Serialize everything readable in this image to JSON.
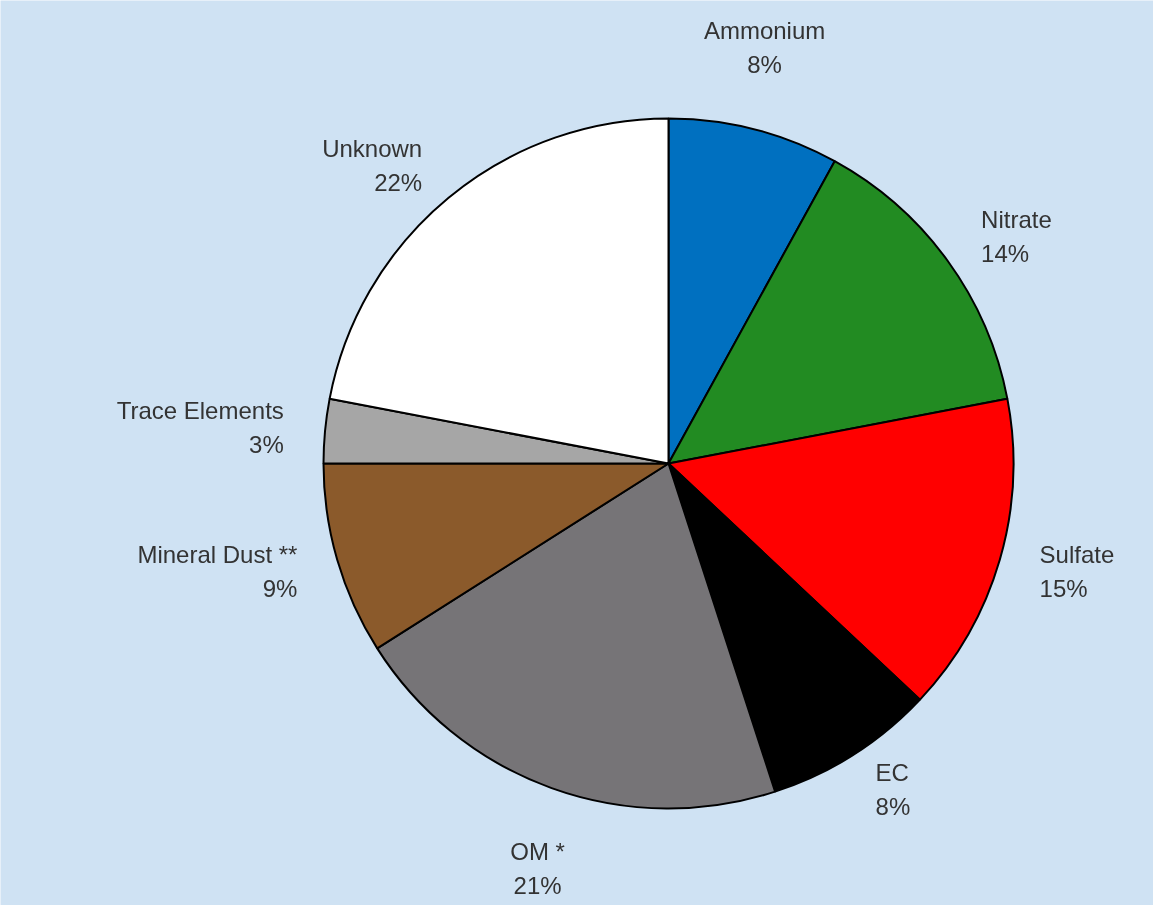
{
  "chart_data": {
    "type": "pie",
    "categories": [
      "Ammonium",
      "Nitrate",
      "Sulfate",
      "EC",
      "OM *",
      "Mineral Dust **",
      "Trace Elements",
      "Unknown"
    ],
    "values": [
      8,
      14,
      15,
      8,
      21,
      9,
      3,
      22
    ],
    "value_labels": [
      "8%",
      "14%",
      "15%",
      "8%",
      "21%",
      "9%",
      "3%",
      "22%"
    ],
    "colors": [
      "#0070c0",
      "#228b22",
      "#ff0000",
      "#000000",
      "#767477",
      "#8b5a2b",
      "#a6a6a6",
      "#ffffff"
    ]
  }
}
